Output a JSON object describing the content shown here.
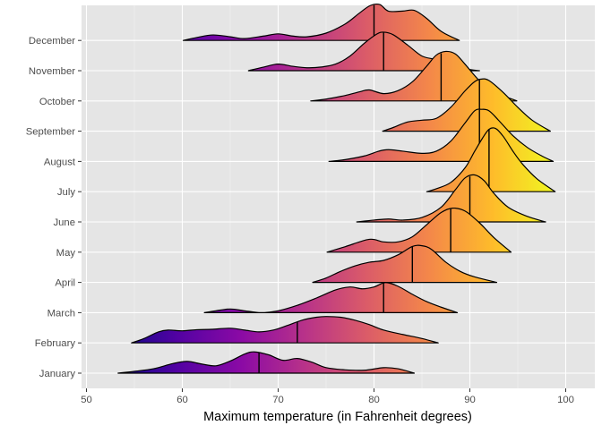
{
  "chart_data": {
    "type": "ridgeline",
    "title": "",
    "xlabel": "Maximum temperature (in Fahrenheit degrees)",
    "ylabel": "",
    "xlim": [
      49,
      103
    ],
    "x_ticks": [
      50,
      60,
      70,
      80,
      90,
      100
    ],
    "grid": true,
    "fill": "gradient by temperature (plasma palette)",
    "gradient_colors": [
      "#0d0887",
      "#5302a3",
      "#8b0aa5",
      "#b83289",
      "#db5c68",
      "#f48849",
      "#febc2a",
      "#f0f921"
    ],
    "background": "#e5e5e5",
    "categories": [
      "January",
      "February",
      "March",
      "April",
      "May",
      "June",
      "July",
      "August",
      "September",
      "October",
      "November",
      "December"
    ],
    "series": [
      {
        "name": "January",
        "range": [
          53.3,
          84.2
        ],
        "median": 68,
        "shape": [
          [
            53.3,
            0.0
          ],
          [
            55,
            0.05
          ],
          [
            57,
            0.12
          ],
          [
            59,
            0.26
          ],
          [
            60.5,
            0.32
          ],
          [
            62,
            0.25
          ],
          [
            63.5,
            0.2
          ],
          [
            65,
            0.33
          ],
          [
            66.5,
            0.52
          ],
          [
            67.5,
            0.58
          ],
          [
            69,
            0.5
          ],
          [
            70.5,
            0.35
          ],
          [
            72,
            0.4
          ],
          [
            73.5,
            0.3
          ],
          [
            75,
            0.15
          ],
          [
            77,
            0.09
          ],
          [
            79,
            0.08
          ],
          [
            81,
            0.15
          ],
          [
            82.5,
            0.12
          ],
          [
            84.2,
            0.0
          ]
        ]
      },
      {
        "name": "February",
        "range": [
          54.7,
          86.7
        ],
        "median": 72,
        "shape": [
          [
            54.7,
            0.0
          ],
          [
            56,
            0.12
          ],
          [
            57.5,
            0.3
          ],
          [
            58.5,
            0.35
          ],
          [
            60,
            0.33
          ],
          [
            61.5,
            0.36
          ],
          [
            63,
            0.37
          ],
          [
            65,
            0.4
          ],
          [
            66.5,
            0.35
          ],
          [
            68,
            0.3
          ],
          [
            69.5,
            0.35
          ],
          [
            71,
            0.48
          ],
          [
            72.5,
            0.62
          ],
          [
            74,
            0.7
          ],
          [
            75,
            0.72
          ],
          [
            76.5,
            0.7
          ],
          [
            78,
            0.62
          ],
          [
            79.5,
            0.5
          ],
          [
            81,
            0.35
          ],
          [
            83,
            0.23
          ],
          [
            85,
            0.12
          ],
          [
            86.7,
            0.0
          ]
        ]
      },
      {
        "name": "March",
        "range": [
          62.3,
          88.7
        ],
        "median": 81,
        "shape": [
          [
            62.3,
            0.0
          ],
          [
            63.5,
            0.05
          ],
          [
            65,
            0.1
          ],
          [
            66.5,
            0.05
          ],
          [
            68,
            0.0
          ],
          [
            68.5,
            0.0
          ],
          [
            70,
            0.05
          ],
          [
            72,
            0.2
          ],
          [
            74,
            0.4
          ],
          [
            76,
            0.62
          ],
          [
            77.5,
            0.7
          ],
          [
            78.8,
            0.65
          ],
          [
            80,
            0.7
          ],
          [
            81.2,
            0.82
          ],
          [
            82.5,
            0.72
          ],
          [
            84,
            0.5
          ],
          [
            85.5,
            0.3
          ],
          [
            87,
            0.15
          ],
          [
            88.7,
            0.0
          ]
        ]
      },
      {
        "name": "April",
        "range": [
          73.6,
          92.8
        ],
        "median": 84,
        "shape": [
          [
            73.6,
            0.0
          ],
          [
            75,
            0.12
          ],
          [
            76.5,
            0.3
          ],
          [
            78,
            0.45
          ],
          [
            79.5,
            0.55
          ],
          [
            81,
            0.6
          ],
          [
            82.5,
            0.75
          ],
          [
            84,
            0.98
          ],
          [
            85,
            1.0
          ],
          [
            86,
            0.9
          ],
          [
            87.5,
            0.55
          ],
          [
            89,
            0.3
          ],
          [
            90.5,
            0.15
          ],
          [
            92.8,
            0.0
          ]
        ]
      },
      {
        "name": "May",
        "range": [
          75.1,
          94.3
        ],
        "median": 88,
        "shape": [
          [
            75.1,
            0.0
          ],
          [
            77,
            0.15
          ],
          [
            79.5,
            0.35
          ],
          [
            81,
            0.28
          ],
          [
            82.5,
            0.28
          ],
          [
            84,
            0.42
          ],
          [
            85.5,
            0.75
          ],
          [
            87,
            1.08
          ],
          [
            88.2,
            1.2
          ],
          [
            89.5,
            1.12
          ],
          [
            91,
            0.8
          ],
          [
            92.5,
            0.4
          ],
          [
            94.3,
            0.0
          ]
        ]
      },
      {
        "name": "June",
        "range": [
          78.2,
          97.9
        ],
        "median": 90,
        "shape": [
          [
            78.2,
            0.0
          ],
          [
            80,
            0.05
          ],
          [
            81.5,
            0.08
          ],
          [
            83,
            0.05
          ],
          [
            85,
            0.12
          ],
          [
            87,
            0.4
          ],
          [
            88.5,
            0.88
          ],
          [
            89.5,
            1.2
          ],
          [
            90.5,
            1.28
          ],
          [
            91.5,
            1.12
          ],
          [
            92.5,
            0.78
          ],
          [
            94,
            0.4
          ],
          [
            96,
            0.15
          ],
          [
            97.9,
            0.0
          ]
        ]
      },
      {
        "name": "July",
        "range": [
          85.5,
          98.9
        ],
        "median": 92,
        "shape": [
          [
            85.5,
            0.0
          ],
          [
            86.5,
            0.08
          ],
          [
            88,
            0.25
          ],
          [
            89.5,
            0.65
          ],
          [
            90.5,
            1.1
          ],
          [
            91.3,
            1.45
          ],
          [
            92,
            1.7
          ],
          [
            92.7,
            1.72
          ],
          [
            93.5,
            1.5
          ],
          [
            94.5,
            1.1
          ],
          [
            95.5,
            0.75
          ],
          [
            97,
            0.35
          ],
          [
            98.9,
            0.0
          ]
        ]
      },
      {
        "name": "August",
        "range": [
          75.3,
          98.7
        ],
        "median": 91,
        "shape": [
          [
            75.3,
            0.0
          ],
          [
            77,
            0.05
          ],
          [
            79,
            0.15
          ],
          [
            80.5,
            0.28
          ],
          [
            81.5,
            0.32
          ],
          [
            83,
            0.28
          ],
          [
            85,
            0.22
          ],
          [
            86.5,
            0.28
          ],
          [
            88,
            0.55
          ],
          [
            89.5,
            1.05
          ],
          [
            90.5,
            1.38
          ],
          [
            91.2,
            1.42
          ],
          [
            92,
            1.38
          ],
          [
            93,
            1.12
          ],
          [
            94.5,
            0.7
          ],
          [
            96,
            0.38
          ],
          [
            97.5,
            0.15
          ],
          [
            98.7,
            0.0
          ]
        ]
      },
      {
        "name": "September",
        "range": [
          80.9,
          98.4
        ],
        "median": 91,
        "shape": [
          [
            80.9,
            0.0
          ],
          [
            82,
            0.1
          ],
          [
            83.5,
            0.25
          ],
          [
            85,
            0.3
          ],
          [
            86.5,
            0.35
          ],
          [
            88,
            0.65
          ],
          [
            89.5,
            1.1
          ],
          [
            90.5,
            1.35
          ],
          [
            91.2,
            1.42
          ],
          [
            92,
            1.38
          ],
          [
            93.5,
            1.05
          ],
          [
            95,
            0.65
          ],
          [
            96.5,
            0.3
          ],
          [
            98.4,
            0.0
          ]
        ]
      },
      {
        "name": "October",
        "range": [
          73.4,
          94.9
        ],
        "median": 87,
        "shape": [
          [
            73.4,
            0.0
          ],
          [
            75,
            0.05
          ],
          [
            77,
            0.15
          ],
          [
            78.5,
            0.25
          ],
          [
            79.5,
            0.3
          ],
          [
            81,
            0.2
          ],
          [
            82.5,
            0.28
          ],
          [
            84,
            0.52
          ],
          [
            85.5,
            0.95
          ],
          [
            86.5,
            1.25
          ],
          [
            87.5,
            1.35
          ],
          [
            88.5,
            1.28
          ],
          [
            89.5,
            1.0
          ],
          [
            91,
            0.55
          ],
          [
            92.5,
            0.25
          ],
          [
            94.9,
            0.0
          ]
        ]
      },
      {
        "name": "November",
        "range": [
          66.9,
          91.0
        ],
        "median": 81,
        "shape": [
          [
            66.9,
            0.0
          ],
          [
            68.5,
            0.1
          ],
          [
            70,
            0.18
          ],
          [
            71.5,
            0.12
          ],
          [
            73,
            0.08
          ],
          [
            74.5,
            0.1
          ],
          [
            76,
            0.18
          ],
          [
            77.5,
            0.4
          ],
          [
            79,
            0.75
          ],
          [
            80.3,
            1.0
          ],
          [
            81,
            1.05
          ],
          [
            82,
            0.98
          ],
          [
            83.5,
            0.7
          ],
          [
            85,
            0.4
          ],
          [
            86.5,
            0.3
          ],
          [
            88,
            0.15
          ],
          [
            89.5,
            0.05
          ],
          [
            91,
            0.0
          ]
        ]
      },
      {
        "name": "December",
        "range": [
          60.1,
          88.9
        ],
        "median": 80,
        "shape": [
          [
            60.1,
            0.0
          ],
          [
            61.5,
            0.08
          ],
          [
            63.2,
            0.15
          ],
          [
            65,
            0.1
          ],
          [
            66.5,
            0.05
          ],
          [
            68.5,
            0.12
          ],
          [
            70,
            0.18
          ],
          [
            71.5,
            0.12
          ],
          [
            73,
            0.1
          ],
          [
            75,
            0.2
          ],
          [
            77,
            0.45
          ],
          [
            78.5,
            0.75
          ],
          [
            79.6,
            0.95
          ],
          [
            80.6,
            0.98
          ],
          [
            81.5,
            0.8
          ],
          [
            83,
            0.8
          ],
          [
            84.2,
            0.82
          ],
          [
            85.5,
            0.6
          ],
          [
            87,
            0.25
          ],
          [
            88.9,
            0.0
          ]
        ]
      }
    ]
  }
}
